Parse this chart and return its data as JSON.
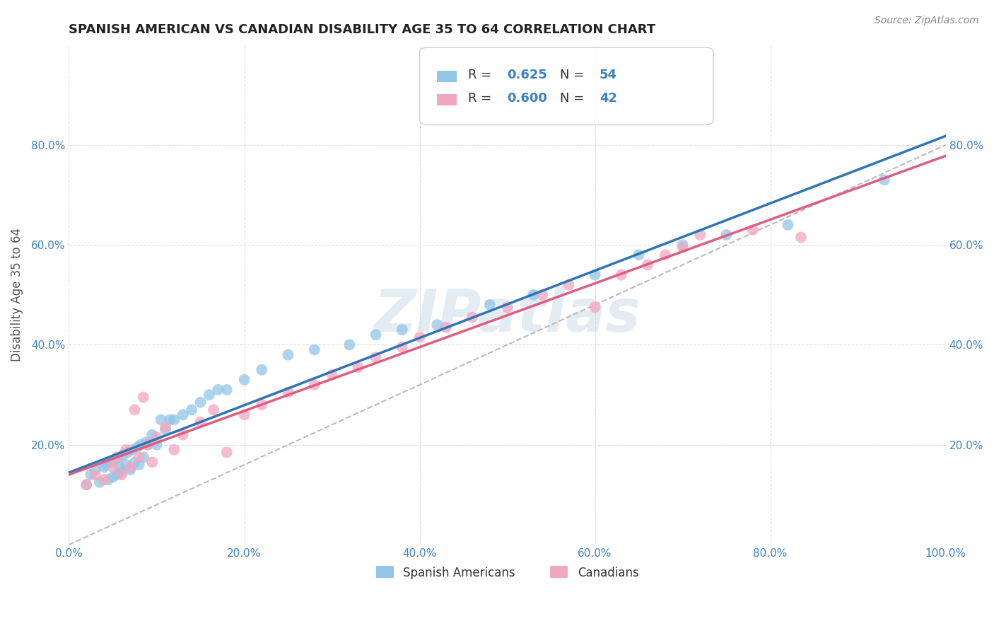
{
  "title": "SPANISH AMERICAN VS CANADIAN DISABILITY AGE 35 TO 64 CORRELATION CHART",
  "source": "Source: ZipAtlas.com",
  "ylabel": "Disability Age 35 to 64",
  "xlim": [
    0.0,
    1.0
  ],
  "ylim": [
    0.0,
    1.0
  ],
  "xticks": [
    0.0,
    0.2,
    0.4,
    0.6,
    0.8,
    1.0
  ],
  "yticks": [
    0.0,
    0.2,
    0.4,
    0.6,
    0.8
  ],
  "xticklabels": [
    "0.0%",
    "20.0%",
    "40.0%",
    "60.0%",
    "80.0%",
    "100.0%"
  ],
  "yticklabels_left": [
    "",
    "20.0%",
    "40.0%",
    "60.0%",
    "80.0%"
  ],
  "yticklabels_right": [
    "20.0%",
    "40.0%",
    "60.0%",
    "80.0%"
  ],
  "yticks_right": [
    0.2,
    0.4,
    0.6,
    0.8
  ],
  "color_blue": "#92C5E8",
  "color_pink": "#F4A6BE",
  "line_blue": "#2E75B6",
  "line_pink": "#E05C80",
  "line_gray": "#BBBBBB",
  "grid_color": "#DDDDDD",
  "tick_color": "#3B82C4",
  "axis_label_color": "#555555",
  "title_color": "#222222",
  "watermark_color": "#C8D8E8",
  "blue_x": [
    0.02,
    0.025,
    0.03,
    0.035,
    0.04,
    0.042,
    0.045,
    0.048,
    0.05,
    0.052,
    0.055,
    0.057,
    0.058,
    0.06,
    0.062,
    0.065,
    0.067,
    0.07,
    0.072,
    0.075,
    0.078,
    0.08,
    0.082,
    0.085,
    0.088,
    0.09,
    0.095,
    0.1,
    0.105,
    0.11,
    0.115,
    0.12,
    0.13,
    0.14,
    0.15,
    0.16,
    0.17,
    0.18,
    0.2,
    0.22,
    0.25,
    0.28,
    0.32,
    0.35,
    0.38,
    0.42,
    0.48,
    0.53,
    0.6,
    0.65,
    0.7,
    0.75,
    0.82,
    0.93
  ],
  "blue_y": [
    0.12,
    0.14,
    0.15,
    0.125,
    0.155,
    0.16,
    0.13,
    0.165,
    0.135,
    0.17,
    0.14,
    0.175,
    0.155,
    0.145,
    0.18,
    0.16,
    0.185,
    0.15,
    0.19,
    0.165,
    0.195,
    0.16,
    0.2,
    0.175,
    0.205,
    0.2,
    0.22,
    0.2,
    0.25,
    0.23,
    0.25,
    0.25,
    0.26,
    0.27,
    0.285,
    0.3,
    0.31,
    0.31,
    0.33,
    0.35,
    0.38,
    0.39,
    0.4,
    0.42,
    0.43,
    0.44,
    0.48,
    0.5,
    0.54,
    0.58,
    0.6,
    0.62,
    0.64,
    0.73
  ],
  "pink_x": [
    0.02,
    0.03,
    0.04,
    0.05,
    0.055,
    0.06,
    0.065,
    0.07,
    0.075,
    0.08,
    0.085,
    0.09,
    0.095,
    0.1,
    0.11,
    0.12,
    0.13,
    0.15,
    0.165,
    0.18,
    0.2,
    0.22,
    0.25,
    0.28,
    0.3,
    0.33,
    0.35,
    0.38,
    0.4,
    0.43,
    0.46,
    0.5,
    0.54,
    0.57,
    0.6,
    0.63,
    0.66,
    0.68,
    0.7,
    0.72,
    0.78,
    0.835
  ],
  "pink_y": [
    0.12,
    0.14,
    0.13,
    0.155,
    0.175,
    0.14,
    0.19,
    0.155,
    0.27,
    0.175,
    0.295,
    0.2,
    0.165,
    0.215,
    0.235,
    0.19,
    0.22,
    0.245,
    0.27,
    0.185,
    0.26,
    0.28,
    0.305,
    0.32,
    0.34,
    0.355,
    0.375,
    0.395,
    0.415,
    0.435,
    0.455,
    0.475,
    0.5,
    0.52,
    0.475,
    0.54,
    0.56,
    0.58,
    0.595,
    0.62,
    0.63,
    0.615
  ],
  "legend_r1": "0.625",
  "legend_n1": "54",
  "legend_r2": "0.600",
  "legend_n2": "42"
}
